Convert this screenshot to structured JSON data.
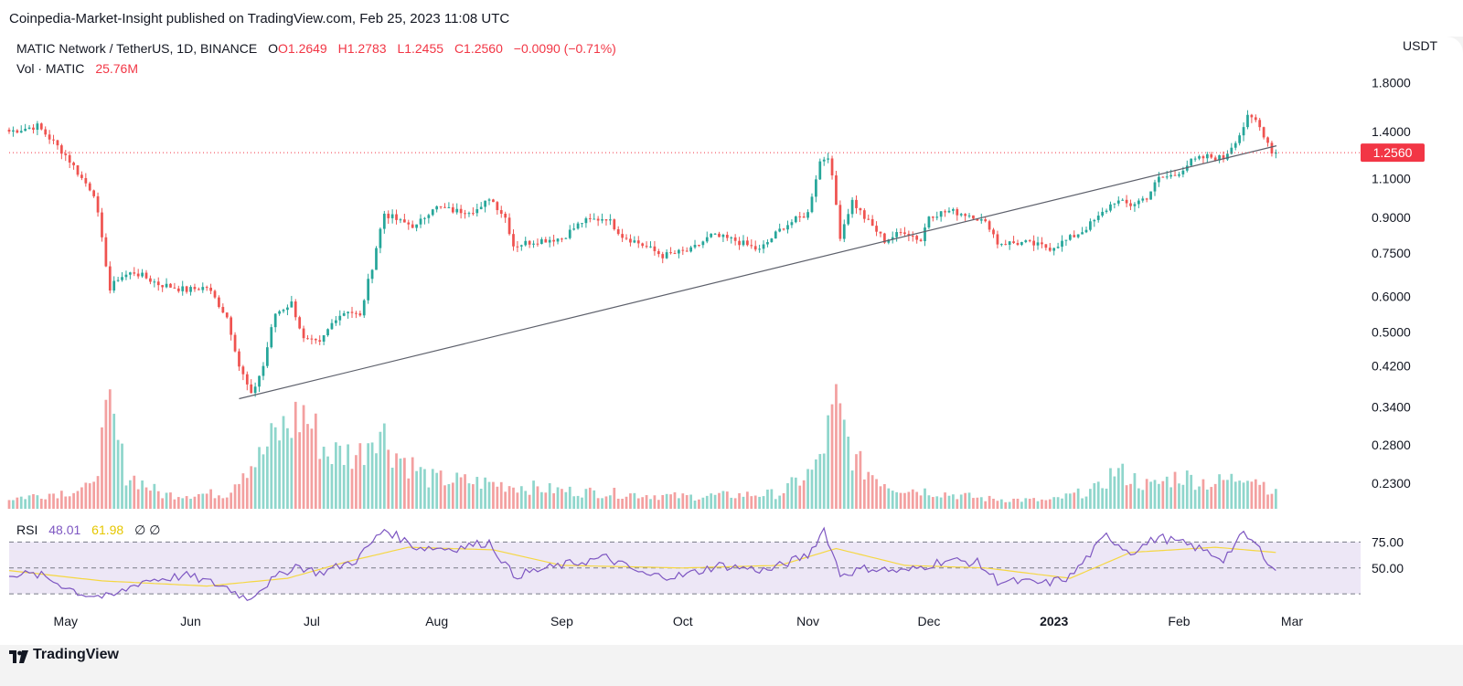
{
  "header": {
    "published": "Coinpedia-Market-Insight published on TradingView.com, Feb 25, 2023 11:08 UTC"
  },
  "legend": {
    "symbol": "MATIC Network / TetherUS, 1D, BINANCE",
    "open": "O1.2649",
    "high": "H1.2783",
    "low": "L1.2455",
    "close": "C1.2560",
    "change": "−0.0090 (−0.71%)",
    "vol_label": "Vol · MATIC",
    "vol_value": "25.76M"
  },
  "rsi_legend": {
    "label": "RSI",
    "value": "48.01",
    "ma_value": "61.98",
    "hidden_marks": "∅ ∅"
  },
  "footer": {
    "brand": "TradingView",
    "logo_icon": "tradingview-logo-icon"
  },
  "colors": {
    "up": "#26a69a",
    "down": "#ef5350",
    "vol_up": "#8fd6cc",
    "vol_down": "#f3a0a0",
    "rsi": "#7e57c2",
    "rsi_ma": "#f5d742",
    "rsi_band": "#ede7f6",
    "current_price": "#f23645"
  },
  "chart_data": {
    "type": "candlestick",
    "symbol": "MATIC Network / TetherUS",
    "interval": "1D",
    "exchange": "BINANCE",
    "price_axis_unit": "USDT",
    "price_scale": "log",
    "price_ticks": [
      1.8,
      1.4,
      1.1,
      0.9,
      0.75,
      0.6,
      0.5,
      0.42,
      0.34,
      0.28,
      0.23
    ],
    "price_tick_labels": [
      "1.8000",
      "1.4000",
      "1.1000",
      "0.9000",
      "0.7500",
      "0.6000",
      "0.5000",
      "0.4200",
      "0.3400",
      "0.2800",
      "0.2300"
    ],
    "current_price": 1.256,
    "current_price_label": "1.2560",
    "x_range": [
      "2022-04-17",
      "2023-03-18"
    ],
    "x_ticks": [
      {
        "date": "2022-05-01",
        "label": "May"
      },
      {
        "date": "2022-06-01",
        "label": "Jun"
      },
      {
        "date": "2022-07-01",
        "label": "Jul"
      },
      {
        "date": "2022-08-01",
        "label": "Aug"
      },
      {
        "date": "2022-09-01",
        "label": "Sep"
      },
      {
        "date": "2022-10-01",
        "label": "Oct"
      },
      {
        "date": "2022-11-01",
        "label": "Nov"
      },
      {
        "date": "2022-12-01",
        "label": "Dec"
      },
      {
        "date": "2023-01-01",
        "label": "2023",
        "bold": true
      },
      {
        "date": "2023-02-01",
        "label": "Feb"
      },
      {
        "date": "2023-03-01",
        "label": "Mar"
      }
    ],
    "trendline": [
      {
        "date": "2022-06-13",
        "price": 0.355
      },
      {
        "date": "2023-02-28",
        "price": 1.32
      }
    ],
    "closes": [
      {
        "date": "2022-04-17",
        "close": 1.4
      },
      {
        "date": "2022-04-24",
        "close": 1.44
      },
      {
        "date": "2022-05-01",
        "close": 1.24
      },
      {
        "date": "2022-05-05",
        "close": 1.1
      },
      {
        "date": "2022-05-08",
        "close": 1.02
      },
      {
        "date": "2022-05-10",
        "close": 0.8
      },
      {
        "date": "2022-05-12",
        "close": 0.62
      },
      {
        "date": "2022-05-14",
        "close": 0.66
      },
      {
        "date": "2022-05-18",
        "close": 0.68
      },
      {
        "date": "2022-05-24",
        "close": 0.64
      },
      {
        "date": "2022-05-31",
        "close": 0.62
      },
      {
        "date": "2022-06-05",
        "close": 0.63
      },
      {
        "date": "2022-06-10",
        "close": 0.54
      },
      {
        "date": "2022-06-13",
        "close": 0.42
      },
      {
        "date": "2022-06-16",
        "close": 0.36
      },
      {
        "date": "2022-06-19",
        "close": 0.42
      },
      {
        "date": "2022-06-22",
        "close": 0.55
      },
      {
        "date": "2022-06-26",
        "close": 0.58
      },
      {
        "date": "2022-06-29",
        "close": 0.48
      },
      {
        "date": "2022-07-03",
        "close": 0.47
      },
      {
        "date": "2022-07-07",
        "close": 0.54
      },
      {
        "date": "2022-07-10",
        "close": 0.56
      },
      {
        "date": "2022-07-13",
        "close": 0.54
      },
      {
        "date": "2022-07-16",
        "close": 0.7
      },
      {
        "date": "2022-07-19",
        "close": 0.92
      },
      {
        "date": "2022-07-23",
        "close": 0.88
      },
      {
        "date": "2022-07-27",
        "close": 0.86
      },
      {
        "date": "2022-07-31",
        "close": 0.95
      },
      {
        "date": "2022-08-06",
        "close": 0.93
      },
      {
        "date": "2022-08-12",
        "close": 0.94
      },
      {
        "date": "2022-08-14",
        "close": 1.0
      },
      {
        "date": "2022-08-18",
        "close": 0.9
      },
      {
        "date": "2022-08-20",
        "close": 0.78
      },
      {
        "date": "2022-08-26",
        "close": 0.8
      },
      {
        "date": "2022-09-01",
        "close": 0.81
      },
      {
        "date": "2022-09-06",
        "close": 0.88
      },
      {
        "date": "2022-09-12",
        "close": 0.9
      },
      {
        "date": "2022-09-16",
        "close": 0.82
      },
      {
        "date": "2022-09-20",
        "close": 0.79
      },
      {
        "date": "2022-09-26",
        "close": 0.74
      },
      {
        "date": "2022-10-03",
        "close": 0.76
      },
      {
        "date": "2022-10-08",
        "close": 0.82
      },
      {
        "date": "2022-10-14",
        "close": 0.8
      },
      {
        "date": "2022-10-20",
        "close": 0.76
      },
      {
        "date": "2022-10-26",
        "close": 0.86
      },
      {
        "date": "2022-11-01",
        "close": 0.92
      },
      {
        "date": "2022-11-04",
        "close": 1.2
      },
      {
        "date": "2022-11-06",
        "close": 1.24
      },
      {
        "date": "2022-11-09",
        "close": 0.82
      },
      {
        "date": "2022-11-12",
        "close": 0.98
      },
      {
        "date": "2022-11-15",
        "close": 0.9
      },
      {
        "date": "2022-11-20",
        "close": 0.8
      },
      {
        "date": "2022-11-25",
        "close": 0.84
      },
      {
        "date": "2022-11-29",
        "close": 0.8
      },
      {
        "date": "2022-12-01",
        "close": 0.91
      },
      {
        "date": "2022-12-06",
        "close": 0.93
      },
      {
        "date": "2022-12-12",
        "close": 0.91
      },
      {
        "date": "2022-12-16",
        "close": 0.86
      },
      {
        "date": "2022-12-18",
        "close": 0.79
      },
      {
        "date": "2022-12-25",
        "close": 0.79
      },
      {
        "date": "2022-12-31",
        "close": 0.77
      },
      {
        "date": "2023-01-04",
        "close": 0.8
      },
      {
        "date": "2023-01-08",
        "close": 0.84
      },
      {
        "date": "2023-01-12",
        "close": 0.9
      },
      {
        "date": "2023-01-16",
        "close": 0.98
      },
      {
        "date": "2023-01-20",
        "close": 0.96
      },
      {
        "date": "2023-01-24",
        "close": 1.0
      },
      {
        "date": "2023-01-27",
        "close": 1.1
      },
      {
        "date": "2023-01-31",
        "close": 1.12
      },
      {
        "date": "2023-02-04",
        "close": 1.2
      },
      {
        "date": "2023-02-08",
        "close": 1.23
      },
      {
        "date": "2023-02-12",
        "close": 1.22
      },
      {
        "date": "2023-02-16",
        "close": 1.38
      },
      {
        "date": "2023-02-18",
        "close": 1.5
      },
      {
        "date": "2023-02-20",
        "close": 1.48
      },
      {
        "date": "2023-02-22",
        "close": 1.38
      },
      {
        "date": "2023-02-24",
        "close": 1.266
      },
      {
        "date": "2023-02-25",
        "close": 1.256
      }
    ],
    "volume_profile": [
      {
        "date": "2022-04-17",
        "volume_relative": 0.1
      },
      {
        "date": "2022-05-07",
        "volume_relative": 0.2
      },
      {
        "date": "2022-05-12",
        "volume_relative": 0.95
      },
      {
        "date": "2022-05-16",
        "volume_relative": 0.35
      },
      {
        "date": "2022-05-25",
        "volume_relative": 0.14
      },
      {
        "date": "2022-06-10",
        "volume_relative": 0.15
      },
      {
        "date": "2022-06-14",
        "volume_relative": 0.4
      },
      {
        "date": "2022-06-18",
        "volume_relative": 0.5
      },
      {
        "date": "2022-06-22",
        "volume_relative": 0.72
      },
      {
        "date": "2022-06-29",
        "volume_relative": 0.95
      },
      {
        "date": "2022-07-05",
        "volume_relative": 0.55
      },
      {
        "date": "2022-07-13",
        "volume_relative": 0.55
      },
      {
        "date": "2022-07-17",
        "volume_relative": 0.85
      },
      {
        "date": "2022-07-22",
        "volume_relative": 0.55
      },
      {
        "date": "2022-07-30",
        "volume_relative": 0.3
      },
      {
        "date": "2022-08-15",
        "volume_relative": 0.25
      },
      {
        "date": "2022-09-01",
        "volume_relative": 0.18
      },
      {
        "date": "2022-10-01",
        "volume_relative": 0.12
      },
      {
        "date": "2022-10-25",
        "volume_relative": 0.15
      },
      {
        "date": "2022-11-03",
        "volume_relative": 0.4
      },
      {
        "date": "2022-11-08",
        "volume_relative": 1.0
      },
      {
        "date": "2022-11-13",
        "volume_relative": 0.45
      },
      {
        "date": "2022-11-22",
        "volume_relative": 0.22
      },
      {
        "date": "2022-12-15",
        "volume_relative": 0.1
      },
      {
        "date": "2022-12-31",
        "volume_relative": 0.08
      },
      {
        "date": "2023-01-12",
        "volume_relative": 0.2
      },
      {
        "date": "2023-01-16",
        "volume_relative": 0.38
      },
      {
        "date": "2023-01-25",
        "volume_relative": 0.22
      },
      {
        "date": "2023-02-01",
        "volume_relative": 0.33
      },
      {
        "date": "2023-02-09",
        "volume_relative": 0.25
      },
      {
        "date": "2023-02-15",
        "volume_relative": 0.3
      },
      {
        "date": "2023-02-18",
        "volume_relative": 0.38
      },
      {
        "date": "2023-02-22",
        "volume_relative": 0.25
      },
      {
        "date": "2023-02-25",
        "volume_relative": 0.15
      }
    ],
    "rsi": {
      "levels": [
        70,
        50,
        30
      ],
      "level_labels": [
        "75.00",
        "50.00"
      ],
      "range": [
        23,
        83
      ],
      "current": 48.01,
      "ma_current": 61.98,
      "points": [
        {
          "date": "2022-04-17",
          "rsi": 46
        },
        {
          "date": "2022-04-25",
          "rsi": 44
        },
        {
          "date": "2022-05-05",
          "rsi": 30
        },
        {
          "date": "2022-05-12",
          "rsi": 27
        },
        {
          "date": "2022-05-20",
          "rsi": 40
        },
        {
          "date": "2022-05-31",
          "rsi": 44
        },
        {
          "date": "2022-06-10",
          "rsi": 35
        },
        {
          "date": "2022-06-15",
          "rsi": 26
        },
        {
          "date": "2022-06-20",
          "rsi": 38
        },
        {
          "date": "2022-06-27",
          "rsi": 52
        },
        {
          "date": "2022-07-03",
          "rsi": 46
        },
        {
          "date": "2022-07-12",
          "rsi": 56
        },
        {
          "date": "2022-07-19",
          "rsi": 80
        },
        {
          "date": "2022-07-27",
          "rsi": 66
        },
        {
          "date": "2022-08-05",
          "rsi": 65
        },
        {
          "date": "2022-08-14",
          "rsi": 70
        },
        {
          "date": "2022-08-20",
          "rsi": 44
        },
        {
          "date": "2022-09-01",
          "rsi": 52
        },
        {
          "date": "2022-09-12",
          "rsi": 58
        },
        {
          "date": "2022-09-22",
          "rsi": 44
        },
        {
          "date": "2022-10-01",
          "rsi": 44
        },
        {
          "date": "2022-10-10",
          "rsi": 52
        },
        {
          "date": "2022-10-22",
          "rsi": 48
        },
        {
          "date": "2022-11-01",
          "rsi": 60
        },
        {
          "date": "2022-11-05",
          "rsi": 80
        },
        {
          "date": "2022-11-09",
          "rsi": 45
        },
        {
          "date": "2022-11-16",
          "rsi": 50
        },
        {
          "date": "2022-11-25",
          "rsi": 47
        },
        {
          "date": "2022-12-05",
          "rsi": 56
        },
        {
          "date": "2022-12-13",
          "rsi": 54
        },
        {
          "date": "2022-12-18",
          "rsi": 40
        },
        {
          "date": "2022-12-30",
          "rsi": 38
        },
        {
          "date": "2023-01-05",
          "rsi": 43
        },
        {
          "date": "2023-01-14",
          "rsi": 75
        },
        {
          "date": "2023-01-20",
          "rsi": 62
        },
        {
          "date": "2023-01-27",
          "rsi": 74
        },
        {
          "date": "2023-02-05",
          "rsi": 66
        },
        {
          "date": "2023-02-12",
          "rsi": 57
        },
        {
          "date": "2023-02-17",
          "rsi": 76
        },
        {
          "date": "2023-02-20",
          "rsi": 68
        },
        {
          "date": "2023-02-25",
          "rsi": 48
        }
      ],
      "ma_points": [
        {
          "date": "2022-04-17",
          "ma": 48
        },
        {
          "date": "2022-05-10",
          "ma": 40
        },
        {
          "date": "2022-06-05",
          "ma": 36
        },
        {
          "date": "2022-06-25",
          "ma": 42
        },
        {
          "date": "2022-07-10",
          "ma": 55
        },
        {
          "date": "2022-07-25",
          "ma": 66
        },
        {
          "date": "2022-08-15",
          "ma": 64
        },
        {
          "date": "2022-09-01",
          "ma": 52
        },
        {
          "date": "2022-10-01",
          "ma": 50
        },
        {
          "date": "2022-10-25",
          "ma": 52
        },
        {
          "date": "2022-11-08",
          "ma": 65
        },
        {
          "date": "2022-11-25",
          "ma": 52
        },
        {
          "date": "2022-12-15",
          "ma": 50
        },
        {
          "date": "2023-01-05",
          "ma": 42
        },
        {
          "date": "2023-01-20",
          "ma": 62
        },
        {
          "date": "2023-02-10",
          "ma": 66
        },
        {
          "date": "2023-02-25",
          "ma": 62
        }
      ]
    }
  }
}
